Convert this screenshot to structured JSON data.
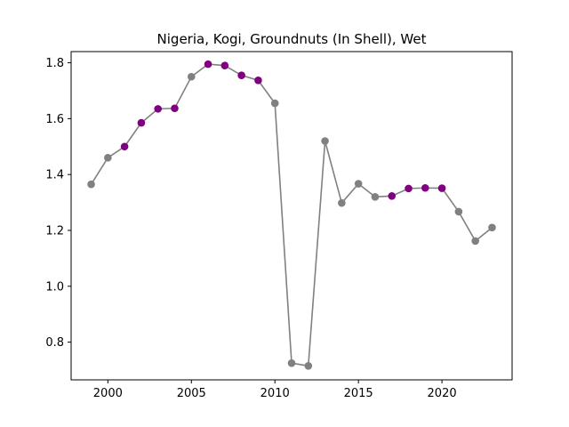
{
  "chart_data": {
    "type": "line",
    "title": "Nigeria, Kogi, Groundnuts (In Shell), Wet",
    "xlabel": "",
    "ylabel": "",
    "xlim": [
      1997.8,
      2024.2
    ],
    "ylim": [
      0.665,
      1.84
    ],
    "x_ticks": [
      2000,
      2005,
      2010,
      2015,
      2020
    ],
    "y_ticks": [
      0.8,
      1.0,
      1.2,
      1.4,
      1.6,
      1.8
    ],
    "y_tick_labels": [
      "0.8",
      "1.0",
      "1.2",
      "1.4",
      "1.6",
      "1.8"
    ],
    "line_color": "#808080",
    "highlight_color": "#800080",
    "grid": false,
    "x": [
      1999,
      2000,
      2001,
      2002,
      2003,
      2004,
      2005,
      2006,
      2007,
      2008,
      2009,
      2010,
      2011,
      2012,
      2013,
      2014,
      2015,
      2016,
      2017,
      2018,
      2019,
      2020,
      2021,
      2022,
      2023
    ],
    "values": [
      1.365,
      1.46,
      1.5,
      1.585,
      1.635,
      1.637,
      1.75,
      1.795,
      1.79,
      1.755,
      1.737,
      1.655,
      0.725,
      0.715,
      1.52,
      1.298,
      1.367,
      1.32,
      1.323,
      1.35,
      1.352,
      1.351,
      1.267,
      1.162,
      1.21
    ],
    "highlighted": [
      false,
      false,
      true,
      true,
      true,
      true,
      false,
      true,
      true,
      true,
      true,
      false,
      false,
      false,
      false,
      false,
      false,
      false,
      true,
      true,
      true,
      true,
      false,
      false,
      false
    ]
  }
}
